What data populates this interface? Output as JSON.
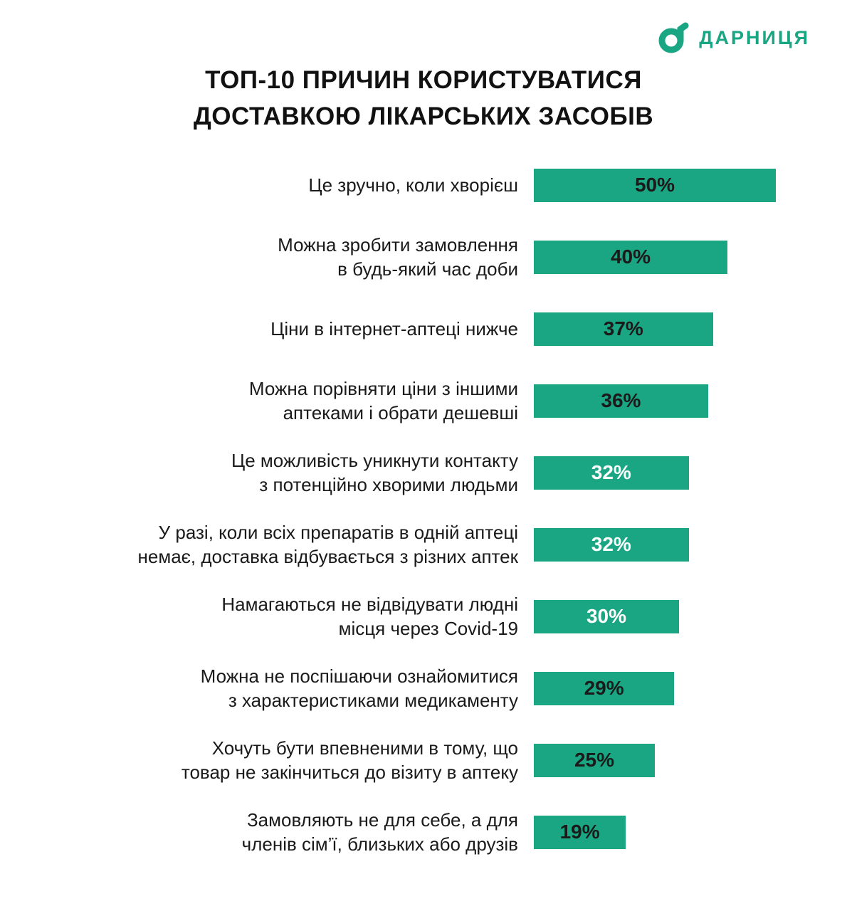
{
  "brand": {
    "name": "ДАРНИЦЯ",
    "color": "#1AA683"
  },
  "title": {
    "line1": "ТОП-10 ПРИЧИН КОРИСТУВАТИСЯ",
    "line2": "ДОСТАВКОЮ ЛІКАРСЬКИХ ЗАСОБІВ"
  },
  "chart_data": {
    "type": "bar",
    "orientation": "horizontal",
    "title": "ТОП-10 причин користуватися доставкою лікарських засобів",
    "bar_color": "#1AA683",
    "max_value": 50,
    "value_suffix": "%",
    "legend": "none",
    "grid": false,
    "categories": [
      "Це зручно, коли хворієш",
      "Можна зробити замовлення в будь-який час доби",
      "Ціни в інтернет-аптеці нижче",
      "Можна порівняти ціни з іншими аптеками і обрати дешевші",
      "Це можливість уникнути контакту з потенційно хворими людьми",
      "У разі, коли всіх препаратів в одній аптеці немає, доставка відбувається з різних аптек",
      "Намагаються не відвідувати людні місця через Covid-19",
      "Можна не поспішаючи ознайомитися з характеристиками медикаменту",
      "Хочуть бути впевненими в тому, що товар не закінчиться до візиту в аптеку",
      "Замовляють не для себе, а для членів сім’ї, близьких або друзів"
    ],
    "values": [
      50,
      40,
      37,
      36,
      32,
      32,
      30,
      29,
      25,
      19
    ],
    "items": [
      {
        "label_lines": [
          "Це зручно, коли хворієш"
        ],
        "value": 50,
        "value_label": "50%",
        "label_color": "#1a1a1a"
      },
      {
        "label_lines": [
          "Можна зробити замовлення",
          "в будь-який час доби"
        ],
        "value": 40,
        "value_label": "40%",
        "label_color": "#1a1a1a"
      },
      {
        "label_lines": [
          "Ціни в інтернет-аптеці нижче"
        ],
        "value": 37,
        "value_label": "37%",
        "label_color": "#1a1a1a"
      },
      {
        "label_lines": [
          "Можна порівняти ціни з іншими",
          "аптеками і обрати дешевші"
        ],
        "value": 36,
        "value_label": "36%",
        "label_color": "#1a1a1a"
      },
      {
        "label_lines": [
          "Це можливість уникнути контакту",
          "з потенційно хворими людьми"
        ],
        "value": 32,
        "value_label": "32%",
        "label_color": "#ffffff"
      },
      {
        "label_lines": [
          "У разі, коли всіх препаратів в одній аптеці",
          "немає, доставка відбувається з різних аптек"
        ],
        "value": 32,
        "value_label": "32%",
        "label_color": "#ffffff"
      },
      {
        "label_lines": [
          "Намагаються не відвідувати людні",
          "місця через Covid-19"
        ],
        "value": 30,
        "value_label": "30%",
        "label_color": "#ffffff"
      },
      {
        "label_lines": [
          "Можна не поспішаючи ознайомитися",
          "з характеристиками медикаменту"
        ],
        "value": 29,
        "value_label": "29%",
        "label_color": "#1a1a1a"
      },
      {
        "label_lines": [
          "Хочуть бути впевненими в тому, що",
          "товар не закінчиться до візиту в аптеку"
        ],
        "value": 25,
        "value_label": "25%",
        "label_color": "#1a1a1a"
      },
      {
        "label_lines": [
          "Замовляють не для себе, а для",
          "членів сім’ї, близьких або друзів"
        ],
        "value": 19,
        "value_label": "19%",
        "label_color": "#1a1a1a"
      }
    ]
  }
}
